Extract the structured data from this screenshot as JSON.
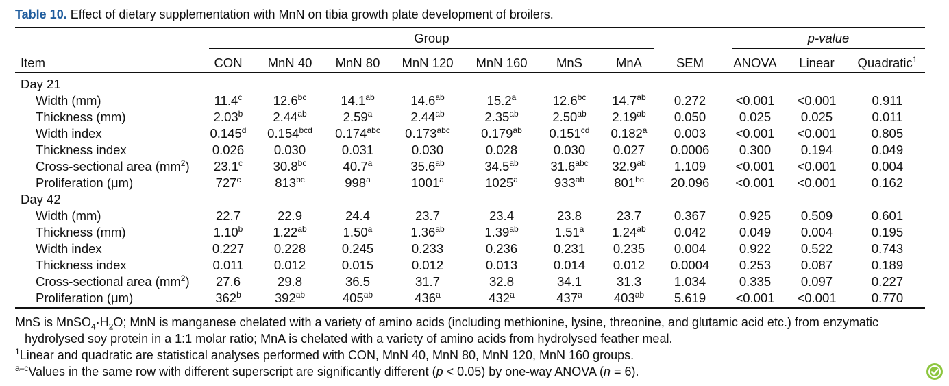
{
  "caption": {
    "label": "Table 10.",
    "title": "Effect of dietary supplementation with MnN on tibia growth plate development of broilers."
  },
  "headers": {
    "group_span": "Group",
    "pvalue_span": "p-value",
    "item": "Item",
    "cols": [
      {
        "text": "CON",
        "sup": ""
      },
      {
        "text": "MnN 40",
        "sup": ""
      },
      {
        "text": "MnN 80",
        "sup": ""
      },
      {
        "text": "MnN 120",
        "sup": ""
      },
      {
        "text": "MnN 160",
        "sup": ""
      },
      {
        "text": "MnS",
        "sup": ""
      },
      {
        "text": "MnA",
        "sup": ""
      },
      {
        "text": "SEM",
        "sup": ""
      },
      {
        "text": "ANOVA",
        "sup": ""
      },
      {
        "text": "Linear",
        "sup": ""
      },
      {
        "text": "Quadratic",
        "sup": "1"
      }
    ]
  },
  "rows": [
    {
      "section": "Day 21"
    },
    {
      "item": "Width (mm)",
      "cells": [
        [
          "11.4",
          "c"
        ],
        [
          "12.6",
          "bc"
        ],
        [
          "14.1",
          "ab"
        ],
        [
          "14.6",
          "ab"
        ],
        [
          "15.2",
          "a"
        ],
        [
          "12.6",
          "bc"
        ],
        [
          "14.7",
          "ab"
        ],
        [
          "0.272",
          ""
        ],
        [
          "<0.001",
          ""
        ],
        [
          "<0.001",
          ""
        ],
        [
          "0.911",
          ""
        ]
      ]
    },
    {
      "item": "Thickness (mm)",
      "cells": [
        [
          "2.03",
          "b"
        ],
        [
          "2.44",
          "ab"
        ],
        [
          "2.59",
          "a"
        ],
        [
          "2.44",
          "ab"
        ],
        [
          "2.35",
          "ab"
        ],
        [
          "2.50",
          "ab"
        ],
        [
          "2.19",
          "ab"
        ],
        [
          "0.050",
          ""
        ],
        [
          "0.025",
          ""
        ],
        [
          "0.025",
          ""
        ],
        [
          "0.011",
          ""
        ]
      ]
    },
    {
      "item": "Width index",
      "cells": [
        [
          "0.145",
          "d"
        ],
        [
          "0.154",
          "bcd"
        ],
        [
          "0.174",
          "abc"
        ],
        [
          "0.173",
          "abc"
        ],
        [
          "0.179",
          "ab"
        ],
        [
          "0.151",
          "cd"
        ],
        [
          "0.182",
          "a"
        ],
        [
          "0.003",
          ""
        ],
        [
          "<0.001",
          ""
        ],
        [
          "<0.001",
          ""
        ],
        [
          "0.805",
          ""
        ]
      ]
    },
    {
      "item": "Thickness index",
      "cells": [
        [
          "0.026",
          ""
        ],
        [
          "0.030",
          ""
        ],
        [
          "0.031",
          ""
        ],
        [
          "0.030",
          ""
        ],
        [
          "0.028",
          ""
        ],
        [
          "0.030",
          ""
        ],
        [
          "0.027",
          ""
        ],
        [
          "0.0006",
          ""
        ],
        [
          "0.300",
          ""
        ],
        [
          "0.194",
          ""
        ],
        [
          "0.049",
          ""
        ]
      ]
    },
    {
      "item": "Cross-sectional area (mm",
      "item_sup": "2",
      "item_tail": ")",
      "cells": [
        [
          "23.1",
          "c"
        ],
        [
          "30.8",
          "bc"
        ],
        [
          "40.7",
          "a"
        ],
        [
          "35.6",
          "ab"
        ],
        [
          "34.5",
          "ab"
        ],
        [
          "31.6",
          "abc"
        ],
        [
          "32.9",
          "ab"
        ],
        [
          "1.109",
          ""
        ],
        [
          "<0.001",
          ""
        ],
        [
          "<0.001",
          ""
        ],
        [
          "0.004",
          ""
        ]
      ]
    },
    {
      "item": "Proliferation (μm)",
      "cells": [
        [
          "727",
          "c"
        ],
        [
          "813",
          "bc"
        ],
        [
          "998",
          "a"
        ],
        [
          "1001",
          "a"
        ],
        [
          "1025",
          "a"
        ],
        [
          "933",
          "ab"
        ],
        [
          "801",
          "bc"
        ],
        [
          "20.096",
          ""
        ],
        [
          "<0.001",
          ""
        ],
        [
          "<0.001",
          ""
        ],
        [
          "0.162",
          ""
        ]
      ]
    },
    {
      "section": "Day 42"
    },
    {
      "item": "Width (mm)",
      "cells": [
        [
          "22.7",
          ""
        ],
        [
          "22.9",
          ""
        ],
        [
          "24.4",
          ""
        ],
        [
          "23.7",
          ""
        ],
        [
          "23.4",
          ""
        ],
        [
          "23.8",
          ""
        ],
        [
          "23.7",
          ""
        ],
        [
          "0.367",
          ""
        ],
        [
          "0.925",
          ""
        ],
        [
          "0.509",
          ""
        ],
        [
          "0.601",
          ""
        ]
      ]
    },
    {
      "item": "Thickness (mm)",
      "cells": [
        [
          "1.10",
          "b"
        ],
        [
          "1.22",
          "ab"
        ],
        [
          "1.50",
          "a"
        ],
        [
          "1.36",
          "ab"
        ],
        [
          "1.39",
          "ab"
        ],
        [
          "1.51",
          "a"
        ],
        [
          "1.24",
          "ab"
        ],
        [
          "0.042",
          ""
        ],
        [
          "0.049",
          ""
        ],
        [
          "0.004",
          ""
        ],
        [
          "0.195",
          ""
        ]
      ]
    },
    {
      "item": "Width index",
      "cells": [
        [
          "0.227",
          ""
        ],
        [
          "0.228",
          ""
        ],
        [
          "0.245",
          ""
        ],
        [
          "0.233",
          ""
        ],
        [
          "0.236",
          ""
        ],
        [
          "0.231",
          ""
        ],
        [
          "0.235",
          ""
        ],
        [
          "0.004",
          ""
        ],
        [
          "0.922",
          ""
        ],
        [
          "0.522",
          ""
        ],
        [
          "0.743",
          ""
        ]
      ]
    },
    {
      "item": "Thickness index",
      "cells": [
        [
          "0.011",
          ""
        ],
        [
          "0.012",
          ""
        ],
        [
          "0.015",
          ""
        ],
        [
          "0.012",
          ""
        ],
        [
          "0.013",
          ""
        ],
        [
          "0.014",
          ""
        ],
        [
          "0.012",
          ""
        ],
        [
          "0.0004",
          ""
        ],
        [
          "0.253",
          ""
        ],
        [
          "0.087",
          ""
        ],
        [
          "0.189",
          ""
        ]
      ]
    },
    {
      "item": "Cross-sectional area (mm",
      "item_sup": "2",
      "item_tail": ")",
      "cells": [
        [
          "27.6",
          ""
        ],
        [
          "29.8",
          ""
        ],
        [
          "36.5",
          ""
        ],
        [
          "31.7",
          ""
        ],
        [
          "32.8",
          ""
        ],
        [
          "34.1",
          ""
        ],
        [
          "31.3",
          ""
        ],
        [
          "1.034",
          ""
        ],
        [
          "0.335",
          ""
        ],
        [
          "0.097",
          ""
        ],
        [
          "0.227",
          ""
        ]
      ]
    },
    {
      "item": "Proliferation (μm)",
      "cells": [
        [
          "362",
          "b"
        ],
        [
          "392",
          "ab"
        ],
        [
          "405",
          "ab"
        ],
        [
          "436",
          "a"
        ],
        [
          "432",
          "a"
        ],
        [
          "437",
          "a"
        ],
        [
          "403",
          "ab"
        ],
        [
          "5.619",
          ""
        ],
        [
          "<0.001",
          ""
        ],
        [
          "<0.001",
          ""
        ],
        [
          "0.770",
          ""
        ]
      ]
    }
  ],
  "notes": {
    "n1_a": "MnS is MnSO",
    "n1_sub1": "4",
    "n1_b": "·H",
    "n1_sub2": "2",
    "n1_c": "O; MnN is manganese chelated with a variety of amino acids (including methionine, lysine, threonine, and glutamic acid etc.) from enzymatic",
    "n1_d": "hydrolysed soy protein in a 1:1 molar ratio; MnA is chelated with a variety of amino acids from hydrolysed feather meal.",
    "n2_sup": "1",
    "n2": "Linear and quadratic are statistical analyses performed with CON, MnN 40, MnN 80, MnN 120, MnN 160 groups.",
    "n3_sup": "a–c",
    "n3_a": "Values in the same row with different superscript are significantly different (",
    "n3_p": "p",
    "n3_b": " < 0.05) by one-way ANOVA (",
    "n3_n": "n",
    "n3_c": " = 6)."
  },
  "badge_icon": "leaf-check-icon",
  "badge_color": "#8dc63f"
}
